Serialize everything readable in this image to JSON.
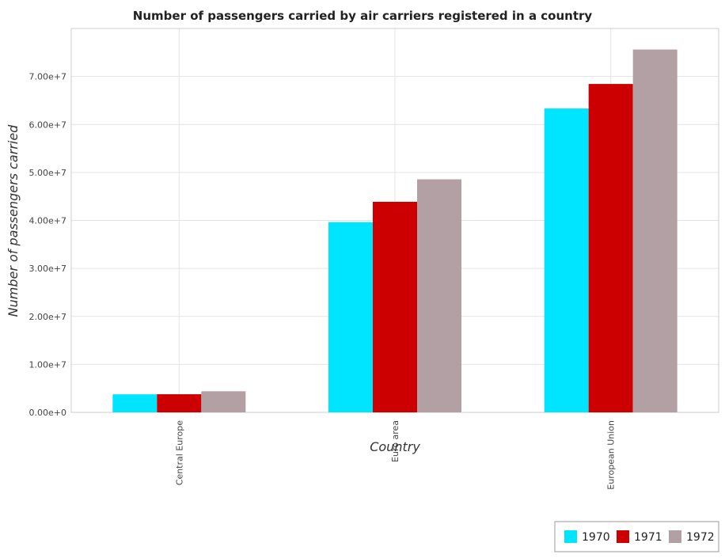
{
  "chart_data": {
    "type": "bar",
    "title": "Number of passengers carried by air carriers registered in a country",
    "xlabel": "Country",
    "ylabel": "Number of passengers carried",
    "categories": [
      "Central Europe",
      "Euro area",
      "European Union"
    ],
    "series": [
      {
        "name": "1970",
        "color": "#00e5ff",
        "values": [
          3760000,
          39650000,
          63330000
        ]
      },
      {
        "name": "1971",
        "color": "#cc0000",
        "values": [
          3780000,
          43880000,
          68440000
        ]
      },
      {
        "name": "1972",
        "color": "#b3a0a4",
        "values": [
          4400000,
          48570000,
          75620000
        ]
      }
    ],
    "ylim": [
      0,
      80000000
    ],
    "yticks": [
      0,
      10000000,
      20000000,
      30000000,
      40000000,
      50000000,
      60000000,
      70000000
    ],
    "ytick_labels": [
      "0.00e+0",
      "1.00e+7",
      "2.00e+7",
      "3.00e+7",
      "4.00e+7",
      "5.00e+7",
      "6.00e+7",
      "7.00e+7"
    ],
    "grid": true,
    "legend_position": "bottom-right"
  }
}
